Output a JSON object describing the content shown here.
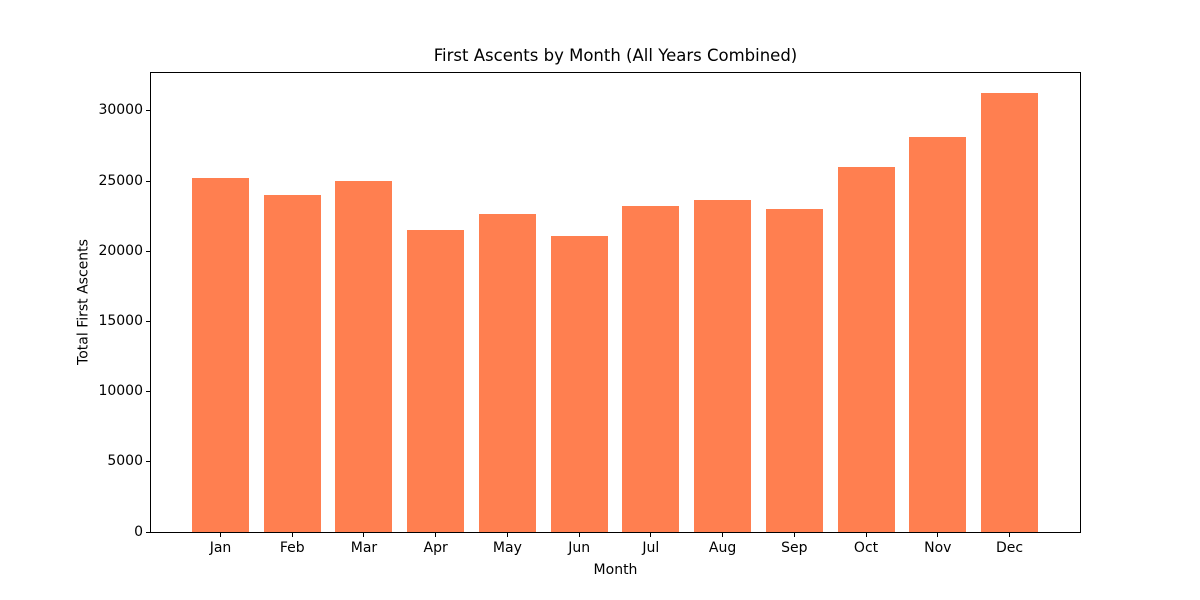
{
  "chart_data": {
    "type": "bar",
    "title": "First Ascents by Month (All Years Combined)",
    "xlabel": "Month",
    "ylabel": "Total First Ascents",
    "categories": [
      "Jan",
      "Feb",
      "Mar",
      "Apr",
      "May",
      "Jun",
      "Jul",
      "Aug",
      "Sep",
      "Oct",
      "Nov",
      "Dec"
    ],
    "values": [
      25200,
      24000,
      25000,
      21500,
      22650,
      21100,
      23250,
      23650,
      23000,
      26000,
      28150,
      31300
    ],
    "yticks": [
      0,
      5000,
      10000,
      15000,
      20000,
      25000,
      30000
    ],
    "ylim": [
      0,
      32700
    ],
    "bar_color": "#ff7f50",
    "background_color": "#ffffff",
    "grid": false,
    "legend": "none"
  }
}
